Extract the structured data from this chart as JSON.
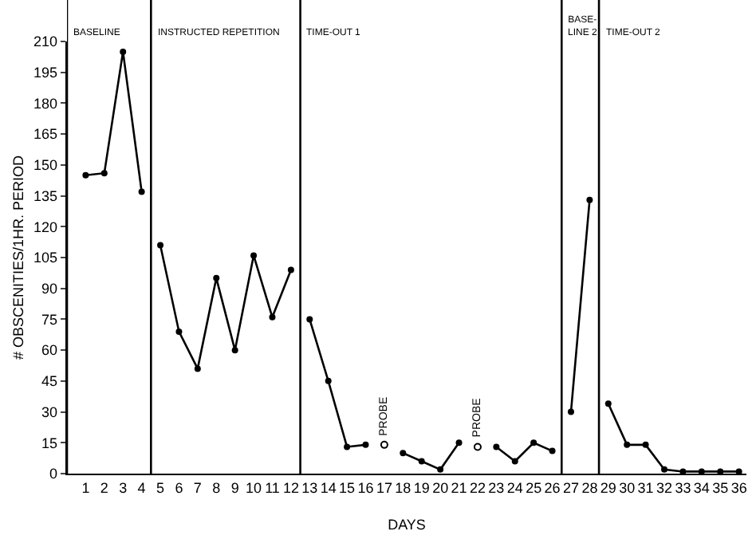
{
  "chart_data": {
    "type": "line",
    "xlabel": "DAYS",
    "ylabel": "# OBSCENITIES/1HR. PERIOD",
    "xlim": [
      0,
      36.4
    ],
    "xticks": [
      1,
      2,
      3,
      4,
      5,
      6,
      7,
      8,
      9,
      10,
      11,
      12,
      13,
      14,
      15,
      16,
      17,
      18,
      19,
      20,
      21,
      22,
      23,
      24,
      25,
      26,
      27,
      28,
      29,
      30,
      31,
      32,
      33,
      34,
      35,
      36
    ],
    "ylim": [
      0,
      210
    ],
    "yticks": [
      0,
      15,
      30,
      45,
      60,
      75,
      90,
      105,
      120,
      135,
      150,
      165,
      180,
      195,
      210
    ],
    "marker": "circle",
    "line_style": "solid",
    "series": [
      {
        "color": "#000000",
        "x": [
          1,
          2,
          3,
          4
        ],
        "values": [
          145,
          146,
          205,
          137
        ]
      },
      {
        "color": "#000000",
        "x": [
          5,
          6,
          7,
          8,
          9,
          10,
          11,
          12
        ],
        "values": [
          111,
          69,
          51,
          95,
          60,
          106,
          76,
          99
        ]
      },
      {
        "color": "#000000",
        "x": [
          13,
          14,
          15,
          16
        ],
        "values": [
          75,
          45,
          13,
          14
        ]
      },
      {
        "color": "#000000",
        "x": [
          18,
          19,
          20,
          21
        ],
        "values": [
          10,
          6,
          2,
          15
        ]
      },
      {
        "color": "#000000",
        "x": [
          23,
          24,
          25,
          26
        ],
        "values": [
          13,
          6,
          15,
          11
        ]
      },
      {
        "color": "#000000",
        "x": [
          27,
          28
        ],
        "values": [
          30,
          133
        ]
      },
      {
        "color": "#000000",
        "x": [
          29,
          30,
          31,
          32,
          33,
          34,
          35,
          36
        ],
        "values": [
          34,
          14,
          14,
          2,
          1,
          1,
          1,
          1
        ]
      },
      {
        "type": "scatter",
        "color": "#000000",
        "x": [
          17,
          22
        ],
        "values": [
          14,
          13
        ]
      }
    ],
    "ref_lines": [
      {
        "axis": "x",
        "value": 0,
        "label": "BASELINE"
      },
      {
        "axis": "x",
        "value": 4.5,
        "label": "INSTRUCTED REPETITION"
      },
      {
        "axis": "x",
        "value": 12.5,
        "label": "TIME-OUT 1"
      },
      {
        "axis": "x",
        "value": 26.5,
        "label": "BASE-\nLINE 2"
      },
      {
        "axis": "x",
        "value": 28.5,
        "label": "TIME-OUT 2"
      }
    ],
    "annotations": [
      {
        "text": "PROBE",
        "x": 17,
        "y": 14
      },
      {
        "text": "PROBE",
        "x": 22,
        "y": 13
      }
    ]
  }
}
